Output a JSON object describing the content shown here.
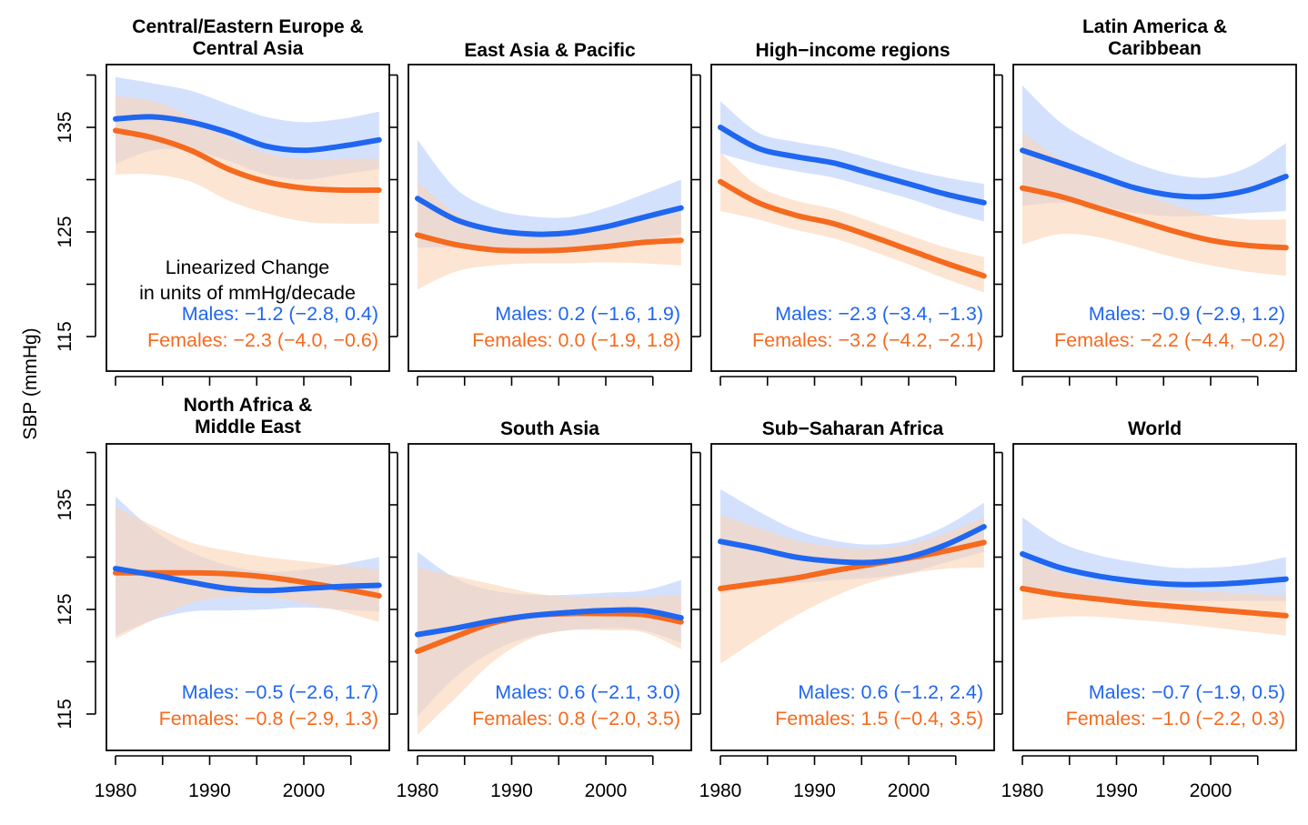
{
  "chart_data": {
    "type": "line",
    "ylabel": "SBP (mmHg)",
    "x_ticks": [
      1980,
      1990,
      2000
    ],
    "y_ticks": [
      115,
      125,
      135
    ],
    "xlim": [
      1979,
      2009
    ],
    "ylim": [
      112,
      142
    ],
    "colors": {
      "males": "#1f66f0",
      "females": "#f56a1e",
      "males_band": "#b8cdfb",
      "females_band": "#fcd3b6"
    },
    "note_lines": [
      "Linearized Change",
      "in units of mmHg/decade"
    ],
    "panels": [
      {
        "title_lines": [
          "Central/Eastern Europe &",
          "Central Asia"
        ],
        "x": [
          1980,
          1984,
          1988,
          1992,
          1996,
          2000,
          2004,
          2008
        ],
        "series": [
          {
            "key": "males",
            "values": [
              135.8,
              136.0,
              135.5,
              134.5,
              133.2,
              132.8,
              133.2,
              133.8
            ],
            "lower": [
              131.5,
              132.8,
              132.8,
              131.8,
              130.5,
              130.0,
              130.5,
              131.0
            ],
            "upper": [
              139.8,
              139.2,
              138.5,
              137.2,
              136.0,
              135.5,
              135.8,
              136.5
            ]
          },
          {
            "key": "females",
            "values": [
              134.7,
              134.0,
              132.8,
              131.0,
              129.8,
              129.2,
              129.0,
              129.0
            ],
            "lower": [
              130.5,
              130.5,
              129.8,
              128.0,
              126.8,
              126.0,
              125.8,
              125.8
            ],
            "upper": [
              138.0,
              137.5,
              136.0,
              134.0,
              132.5,
              132.0,
              132.0,
              132.0
            ]
          }
        ],
        "annotation": {
          "males": "Males: −1.2 (−2.8, 0.4)",
          "females": "Females: −2.3 (−4.0, −0.6)"
        }
      },
      {
        "title_lines": [
          "East Asia & Pacific"
        ],
        "x": [
          1980,
          1984,
          1988,
          1992,
          1996,
          2000,
          2004,
          2008
        ],
        "series": [
          {
            "key": "males",
            "values": [
              128.2,
              126.2,
              125.2,
              124.8,
              124.9,
              125.5,
              126.4,
              127.3
            ],
            "lower": [
              123.5,
              123.5,
              123.2,
              123.2,
              123.4,
              123.8,
              124.2,
              124.8
            ],
            "upper": [
              133.8,
              129.2,
              127.2,
              126.5,
              126.4,
              127.3,
              128.6,
              130.0
            ]
          },
          {
            "key": "females",
            "values": [
              124.7,
              123.8,
              123.3,
              123.2,
              123.3,
              123.6,
              124.0,
              124.2
            ],
            "lower": [
              119.5,
              121.2,
              121.8,
              122.0,
              122.0,
              122.1,
              122.0,
              121.8
            ],
            "upper": [
              129.8,
              126.8,
              125.2,
              124.6,
              124.8,
              125.4,
              126.2,
              126.8
            ]
          }
        ],
        "annotation": {
          "males": "Males: 0.2 (−1.6, 1.9)",
          "females": "Females: 0.0 (−1.9, 1.8)"
        }
      },
      {
        "title_lines": [
          "High−income regions"
        ],
        "x": [
          1980,
          1984,
          1988,
          1992,
          1996,
          2000,
          2004,
          2008
        ],
        "series": [
          {
            "key": "males",
            "values": [
              135.0,
              133.0,
              132.2,
              131.6,
              130.6,
              129.6,
              128.6,
              127.8
            ],
            "lower": [
              132.5,
              131.5,
              130.8,
              130.2,
              129.2,
              128.2,
              127.0,
              126.0
            ],
            "upper": [
              137.5,
              134.5,
              133.6,
              133.0,
              132.0,
              131.0,
              130.2,
              129.6
            ]
          },
          {
            "key": "females",
            "values": [
              129.8,
              127.8,
              126.6,
              125.8,
              124.6,
              123.3,
              122.0,
              120.8
            ],
            "lower": [
              127.0,
              126.2,
              125.2,
              124.4,
              123.2,
              121.9,
              120.5,
              119.2
            ],
            "upper": [
              132.6,
              129.4,
              128.0,
              127.2,
              126.0,
              124.7,
              123.5,
              122.6
            ]
          }
        ],
        "annotation": {
          "males": "Males: −2.3 (−3.4, −1.3)",
          "females": "Females: −3.2 (−4.2, −2.1)"
        }
      },
      {
        "title_lines": [
          "Latin America &",
          "Caribbean"
        ],
        "x": [
          1980,
          1984,
          1988,
          1992,
          1996,
          2000,
          2004,
          2008
        ],
        "series": [
          {
            "key": "males",
            "values": [
              132.8,
              131.6,
              130.4,
              129.2,
              128.5,
              128.4,
              129.0,
              130.3
            ],
            "lower": [
              127.5,
              127.8,
              127.5,
              126.8,
              126.5,
              126.6,
              126.8,
              127.0
            ],
            "upper": [
              139.0,
              135.5,
              133.3,
              131.6,
              130.5,
              130.2,
              131.2,
              133.5
            ]
          },
          {
            "key": "females",
            "values": [
              129.2,
              128.4,
              127.3,
              126.2,
              125.1,
              124.2,
              123.7,
              123.5
            ],
            "lower": [
              123.8,
              124.8,
              124.5,
              123.6,
              122.6,
              121.8,
              121.2,
              120.8
            ],
            "upper": [
              134.5,
              132.0,
              130.0,
              128.8,
              127.6,
              126.6,
              126.2,
              126.2
            ]
          }
        ],
        "annotation": {
          "males": "Males: −0.9 (−2.9, 1.2)",
          "females": "Females: −2.2 (−4.4, −0.2)"
        }
      },
      {
        "title_lines": [
          "North Africa &",
          "Middle East"
        ],
        "x": [
          1980,
          1984,
          1988,
          1992,
          1996,
          2000,
          2004,
          2008
        ],
        "series": [
          {
            "key": "males",
            "values": [
              128.9,
              128.3,
              127.6,
              127.0,
              126.8,
              127.0,
              127.2,
              127.3
            ],
            "lower": [
              122.5,
              124.0,
              124.8,
              124.9,
              125.0,
              125.2,
              125.0,
              124.8
            ],
            "upper": [
              135.8,
              132.6,
              130.5,
              129.2,
              128.6,
              128.8,
              129.3,
              130.0
            ]
          },
          {
            "key": "females",
            "values": [
              128.5,
              128.5,
              128.5,
              128.4,
              128.1,
              127.6,
              127.0,
              126.3
            ],
            "lower": [
              122.2,
              124.0,
              125.6,
              126.2,
              126.2,
              125.6,
              124.8,
              123.8
            ],
            "upper": [
              134.8,
              133.0,
              131.4,
              130.6,
              130.0,
              129.6,
              129.2,
              128.8
            ]
          }
        ],
        "annotation": {
          "males": "Males: −0.5 (−2.6, 1.7)",
          "females": "Females: −0.8 (−2.9, 1.3)"
        }
      },
      {
        "title_lines": [
          "South Asia"
        ],
        "x": [
          1980,
          1984,
          1988,
          1992,
          1996,
          2000,
          2004,
          2008
        ],
        "series": [
          {
            "key": "males",
            "values": [
              122.6,
              123.2,
              123.9,
              124.4,
              124.7,
              124.9,
              124.9,
              124.2
            ],
            "lower": [
              114.8,
              118.5,
              121.0,
              122.4,
              123.0,
              123.2,
              123.0,
              121.8
            ],
            "upper": [
              130.5,
              128.0,
              126.8,
              126.4,
              126.4,
              126.6,
              126.8,
              127.8
            ]
          },
          {
            "key": "females",
            "values": [
              121.0,
              122.4,
              123.7,
              124.4,
              124.6,
              124.6,
              124.5,
              123.8
            ],
            "lower": [
              113.0,
              116.5,
              120.0,
              122.2,
              123.0,
              123.0,
              122.8,
              121.2
            ],
            "upper": [
              129.0,
              128.2,
              127.4,
              126.6,
              126.2,
              126.2,
              126.2,
              126.4
            ]
          }
        ],
        "annotation": {
          "males": "Males: 0.6 (−2.1, 3.0)",
          "females": "Females: 0.8 (−2.0, 3.5)"
        }
      },
      {
        "title_lines": [
          "Sub−Saharan Africa"
        ],
        "x": [
          1980,
          1984,
          1988,
          1992,
          1996,
          2000,
          2004,
          2008
        ],
        "series": [
          {
            "key": "males",
            "values": [
              131.5,
              130.8,
              130.0,
              129.6,
              129.5,
              130.0,
              131.2,
              132.9
            ],
            "lower": [
              126.5,
              127.2,
              127.5,
              127.8,
              128.0,
              128.5,
              129.5,
              130.5
            ],
            "upper": [
              136.5,
              134.4,
              132.6,
              131.6,
              131.2,
              131.6,
              133.0,
              135.2
            ]
          },
          {
            "key": "females",
            "values": [
              127.0,
              127.5,
              128.0,
              128.7,
              129.3,
              129.9,
              130.6,
              131.4
            ],
            "lower": [
              119.8,
              122.2,
              124.4,
              126.2,
              127.6,
              128.4,
              128.9,
              129.0
            ],
            "upper": [
              134.0,
              132.8,
              131.6,
              131.0,
              130.8,
              131.2,
              132.3,
              133.8
            ]
          }
        ],
        "annotation": {
          "males": "Males: 0.6 (−1.2, 2.4)",
          "females": "Females: 1.5 (−0.4, 3.5)"
        }
      },
      {
        "title_lines": [
          "World"
        ],
        "x": [
          1980,
          1984,
          1988,
          1992,
          1996,
          2000,
          2004,
          2008
        ],
        "series": [
          {
            "key": "males",
            "values": [
              130.3,
              129.0,
              128.2,
              127.7,
              127.4,
              127.4,
              127.6,
              127.9
            ],
            "lower": [
              126.8,
              126.6,
              126.2,
              125.9,
              125.8,
              125.8,
              125.8,
              125.8
            ],
            "upper": [
              133.8,
              131.4,
              130.2,
              129.5,
              129.0,
              129.0,
              129.3,
              130.0
            ]
          },
          {
            "key": "females",
            "values": [
              127.0,
              126.4,
              126.0,
              125.6,
              125.3,
              125.0,
              124.7,
              124.4
            ],
            "lower": [
              124.0,
              124.3,
              124.3,
              124.0,
              123.7,
              123.3,
              122.9,
              122.5
            ],
            "upper": [
              130.0,
              128.5,
              127.7,
              127.2,
              126.9,
              126.7,
              126.5,
              126.3
            ]
          }
        ],
        "annotation": {
          "males": "Males: −0.7 (−1.9, 0.5)",
          "females": "Females: −1.0 (−2.2, 0.3)"
        }
      }
    ]
  }
}
